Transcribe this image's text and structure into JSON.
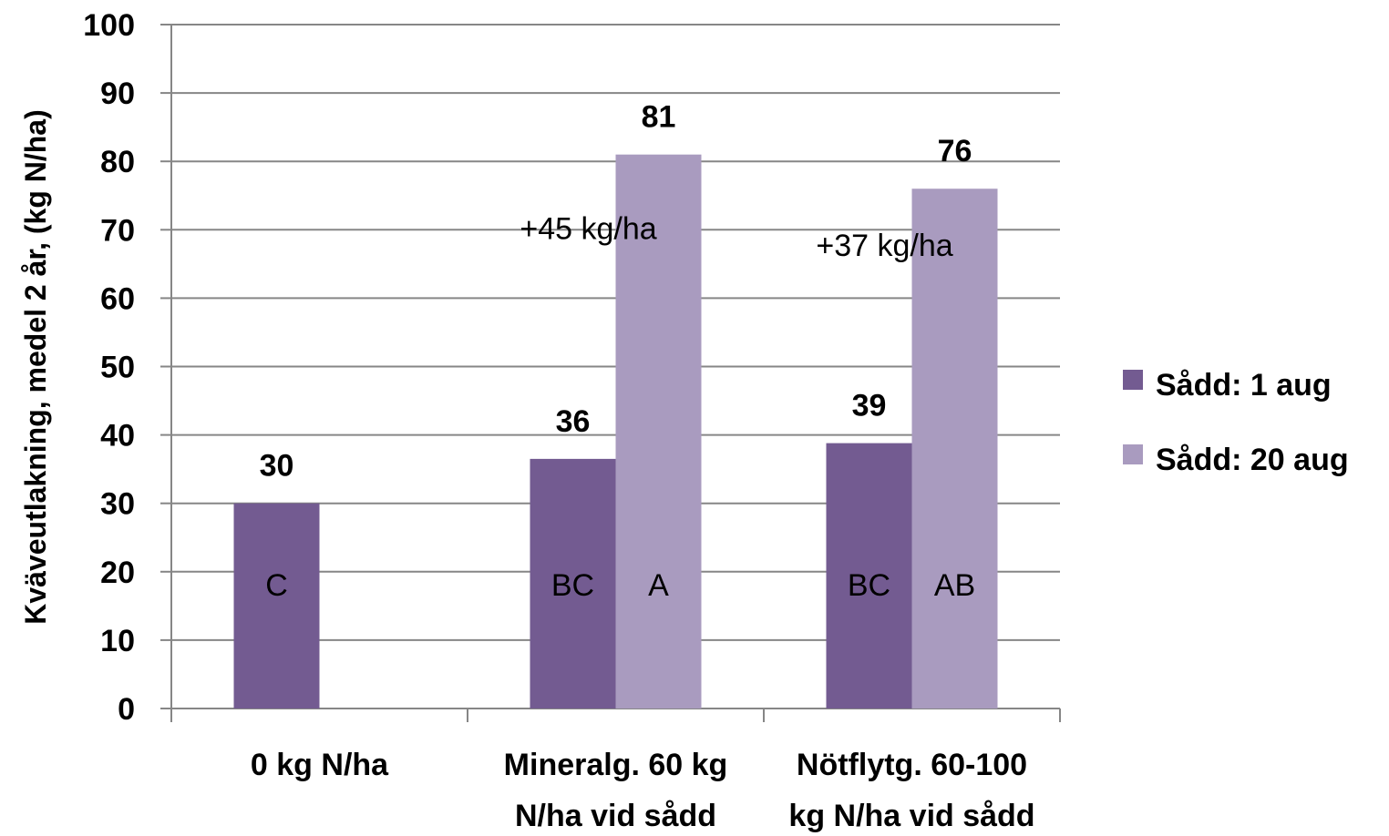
{
  "chart_data": {
    "type": "bar",
    "ylabel": "Kväveutlakning, medel 2 år, (kg N/ha)",
    "ylim": [
      0,
      100
    ],
    "yticks": [
      0,
      10,
      20,
      30,
      40,
      50,
      60,
      70,
      80,
      90,
      100
    ],
    "grid": true,
    "legend_position": "right",
    "categories": [
      [
        "0 kg N/ha"
      ],
      [
        "Mineralg. 60 kg",
        "N/ha  vid sådd"
      ],
      [
        "Nötflytg. 60-100",
        "kg N/ha vid sådd"
      ]
    ],
    "series": [
      {
        "name": "Sådd: 1 aug",
        "color": "#735b91",
        "values": [
          30,
          36.5,
          38.8
        ],
        "value_labels": [
          "30",
          "36",
          "39"
        ],
        "group_labels": [
          "C",
          "BC",
          "BC"
        ]
      },
      {
        "name": "Sådd: 20 aug",
        "color": "#a99bbf",
        "values": [
          null,
          81,
          76
        ],
        "value_labels": [
          "",
          "81",
          "76"
        ],
        "group_labels": [
          "",
          "A",
          "AB"
        ]
      }
    ],
    "annotations": [
      {
        "text": "+45 kg/ha",
        "category_index": 1,
        "y": 70
      },
      {
        "text": "+37 kg/ha",
        "category_index": 2,
        "y": 67.5
      }
    ]
  }
}
